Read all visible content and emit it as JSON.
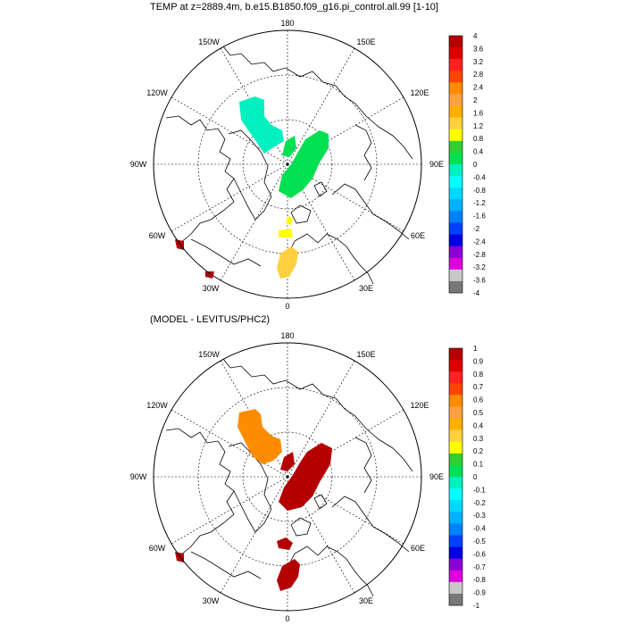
{
  "panels": [
    {
      "title": "TEMP at z=2889.4m, b.e15.B1850.f09_g16.pi_control.all.99 [1-10]",
      "longitude_labels": {
        "top": "180",
        "upper_left": "150W",
        "upper_right": "150E",
        "mid_upper_left": "120W",
        "mid_upper_right": "120E",
        "left": "90W",
        "right": "90E",
        "mid_lower_left": "60W",
        "mid_lower_right": "60E",
        "lower_left": "30W",
        "lower_right": "30E",
        "bottom": "0"
      },
      "colorbar": {
        "labels": [
          "4",
          "3.6",
          "3.2",
          "2.8",
          "2.4",
          "2",
          "1.6",
          "1.2",
          "0.8",
          "0.4",
          "0",
          "-0.4",
          "-0.8",
          "-1.2",
          "-1.6",
          "-2",
          "-2.4",
          "-2.8",
          "-3.2",
          "-3.6",
          "-4"
        ],
        "colors": [
          "#b40000",
          "#dc0000",
          "#ff2020",
          "#ff4500",
          "#ff8c00",
          "#ffa040",
          "#ffb000",
          "#ffd040",
          "#ffff00",
          "#32cd32",
          "#00e050",
          "#00f0c0",
          "#00ffff",
          "#00d8ff",
          "#00b0ff",
          "#0080ff",
          "#0040ff",
          "#0000e0",
          "#8a00d0",
          "#dd00dd",
          "#c8c8c8",
          "#787878"
        ]
      }
    },
    {
      "title": "(MODEL - LEVITUS/PHC2)",
      "longitude_labels": {
        "top": "180",
        "upper_left": "150W",
        "upper_right": "150E",
        "mid_upper_left": "120W",
        "mid_upper_right": "120E",
        "left": "90W",
        "right": "90E",
        "mid_lower_left": "60W",
        "mid_lower_right": "60E",
        "lower_left": "30W",
        "lower_right": "30E",
        "bottom": "0"
      },
      "colorbar": {
        "labels": [
          "1",
          "0.9",
          "0.8",
          "0.7",
          "0.6",
          "0.5",
          "0.4",
          "0.3",
          "0.2",
          "0.1",
          "0",
          "-0.1",
          "-0.2",
          "-0.3",
          "-0.4",
          "-0.5",
          "-0.6",
          "-0.7",
          "-0.8",
          "-0.9",
          "-1"
        ],
        "colors": [
          "#b40000",
          "#dc0000",
          "#ff2020",
          "#ff4500",
          "#ff8c00",
          "#ffa040",
          "#ffb000",
          "#ffd040",
          "#ffff00",
          "#32cd32",
          "#00e050",
          "#00f0c0",
          "#00ffff",
          "#00d8ff",
          "#00b0ff",
          "#0080ff",
          "#0040ff",
          "#0000e0",
          "#8a00d0",
          "#dd00dd",
          "#c8c8c8",
          "#787878"
        ]
      }
    }
  ],
  "anomaly_patches": {
    "top": [
      {
        "region": "canada-basin",
        "color": "#00f0c0"
      },
      {
        "region": "eurasian-basin",
        "color": "#00e050"
      },
      {
        "region": "eurasian-basin-small",
        "color": "#00e050"
      },
      {
        "region": "fram-strait",
        "color": "#ffff00"
      },
      {
        "region": "norwegian-sea",
        "color": "#ffd040"
      },
      {
        "region": "labrador-1",
        "color": "#b40000"
      },
      {
        "region": "labrador-2",
        "color": "#b40000"
      }
    ],
    "bottom": [
      {
        "region": "canada-basin",
        "color": "#ff8c00"
      },
      {
        "region": "eurasian-basin",
        "color": "#b40000"
      },
      {
        "region": "eurasian-basin-small",
        "color": "#b40000"
      },
      {
        "region": "fram-strait",
        "color": "#b40000"
      },
      {
        "region": "norwegian-sea",
        "color": "#b40000"
      },
      {
        "region": "labrador-1",
        "color": "#b40000"
      }
    ]
  }
}
